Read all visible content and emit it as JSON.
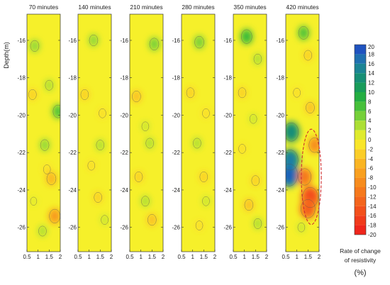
{
  "chart_data": {
    "type": "heatmap",
    "title": "",
    "ylabel": "Depth(m)",
    "xlabel": "",
    "ylim": [
      -27.3,
      -14.6
    ],
    "xlim": [
      0.5,
      2.0
    ],
    "y_ticks": [
      "-16",
      "-18",
      "-20",
      "-22",
      "-24",
      "-26"
    ],
    "x_ticks": [
      "0.5",
      "1",
      "1.5",
      "2"
    ],
    "panels": [
      {
        "label": "70 minutes",
        "mean_change": 0,
        "blobs": [
          {
            "x": 0.85,
            "y": -16.3,
            "v": 4
          },
          {
            "x": 1.5,
            "y": -18.4,
            "v": 3
          },
          {
            "x": 0.75,
            "y": -18.9,
            "v": -3
          },
          {
            "x": 1.9,
            "y": -19.8,
            "v": 6
          },
          {
            "x": 1.3,
            "y": -21.6,
            "v": 4
          },
          {
            "x": 1.4,
            "y": -22.9,
            "v": -2
          },
          {
            "x": 1.6,
            "y": -23.4,
            "v": -5
          },
          {
            "x": 0.8,
            "y": -24.6,
            "v": 1
          },
          {
            "x": 1.75,
            "y": -25.4,
            "v": -7
          },
          {
            "x": 1.2,
            "y": -26.2,
            "v": 3
          }
        ]
      },
      {
        "label": "140 minutes",
        "mean_change": 0,
        "blobs": [
          {
            "x": 1.2,
            "y": -16.0,
            "v": 4
          },
          {
            "x": 0.8,
            "y": -18.9,
            "v": -3
          },
          {
            "x": 1.6,
            "y": -19.9,
            "v": -2
          },
          {
            "x": 1.5,
            "y": -21.6,
            "v": 3
          },
          {
            "x": 1.1,
            "y": -22.7,
            "v": -2
          },
          {
            "x": 1.4,
            "y": -24.4,
            "v": -3
          },
          {
            "x": 1.7,
            "y": -25.6,
            "v": 2
          }
        ]
      },
      {
        "label": "210 minutes",
        "mean_change": 0,
        "blobs": [
          {
            "x": 1.6,
            "y": -16.2,
            "v": 5
          },
          {
            "x": 0.8,
            "y": -19.0,
            "v": -4
          },
          {
            "x": 1.2,
            "y": -20.6,
            "v": 2
          },
          {
            "x": 1.4,
            "y": -21.5,
            "v": 3
          },
          {
            "x": 0.9,
            "y": -23.3,
            "v": -3
          },
          {
            "x": 1.2,
            "y": -24.6,
            "v": 3
          },
          {
            "x": 1.5,
            "y": -25.6,
            "v": -4
          }
        ]
      },
      {
        "label": "280 minutes",
        "mean_change": 0,
        "blobs": [
          {
            "x": 1.3,
            "y": -16.1,
            "v": 5
          },
          {
            "x": 0.9,
            "y": -18.8,
            "v": -3
          },
          {
            "x": 1.6,
            "y": -19.9,
            "v": -2
          },
          {
            "x": 1.2,
            "y": -21.5,
            "v": 3
          },
          {
            "x": 1.5,
            "y": -23.3,
            "v": -3
          },
          {
            "x": 1.6,
            "y": -24.6,
            "v": 2
          },
          {
            "x": 1.3,
            "y": -25.9,
            "v": -2
          }
        ]
      },
      {
        "label": "350 minutes",
        "mean_change": 0,
        "blobs": [
          {
            "x": 1.1,
            "y": -15.8,
            "v": 7
          },
          {
            "x": 1.6,
            "y": -17.0,
            "v": 3
          },
          {
            "x": 0.9,
            "y": -18.8,
            "v": -3
          },
          {
            "x": 1.4,
            "y": -20.2,
            "v": 2
          },
          {
            "x": 0.9,
            "y": -21.8,
            "v": -2
          },
          {
            "x": 1.5,
            "y": -23.5,
            "v": -3
          },
          {
            "x": 1.2,
            "y": -24.8,
            "v": -4
          },
          {
            "x": 1.6,
            "y": -25.8,
            "v": 3
          }
        ]
      },
      {
        "label": "420 minutes",
        "mean_change": 0,
        "blobs": [
          {
            "x": 1.3,
            "y": -15.6,
            "v": 6
          },
          {
            "x": 1.5,
            "y": -16.8,
            "v": -3
          },
          {
            "x": 1.0,
            "y": -18.8,
            "v": -2
          },
          {
            "x": 1.6,
            "y": -19.6,
            "v": -4
          },
          {
            "x": 0.75,
            "y": -20.9,
            "v": 12
          },
          {
            "x": 0.7,
            "y": -22.4,
            "v": 14
          },
          {
            "x": 0.65,
            "y": -23.2,
            "v": 16
          },
          {
            "x": 1.8,
            "y": -21.6,
            "v": -8
          },
          {
            "x": 1.35,
            "y": -23.3,
            "v": -10
          },
          {
            "x": 1.6,
            "y": -24.4,
            "v": -14
          },
          {
            "x": 1.5,
            "y": -25.0,
            "v": -12
          },
          {
            "x": 1.2,
            "y": -26.0,
            "v": 2
          }
        ]
      }
    ],
    "anomaly_ellipse": {
      "panel": 5,
      "cx": 1.65,
      "cy": -23.3,
      "rx": 0.45,
      "ry": 2.55
    },
    "colorbar": {
      "labels": [
        "20",
        "18",
        "16",
        "14",
        "12",
        "10",
        "8",
        "6",
        "4",
        "2",
        "0",
        "-2",
        "-4",
        "-6",
        "-8",
        "-10",
        "-12",
        "-14",
        "-16",
        "-18",
        "-20"
      ],
      "title_line1": "Rate of change",
      "title_line2": "of resistivity",
      "unit": "(%)"
    }
  }
}
